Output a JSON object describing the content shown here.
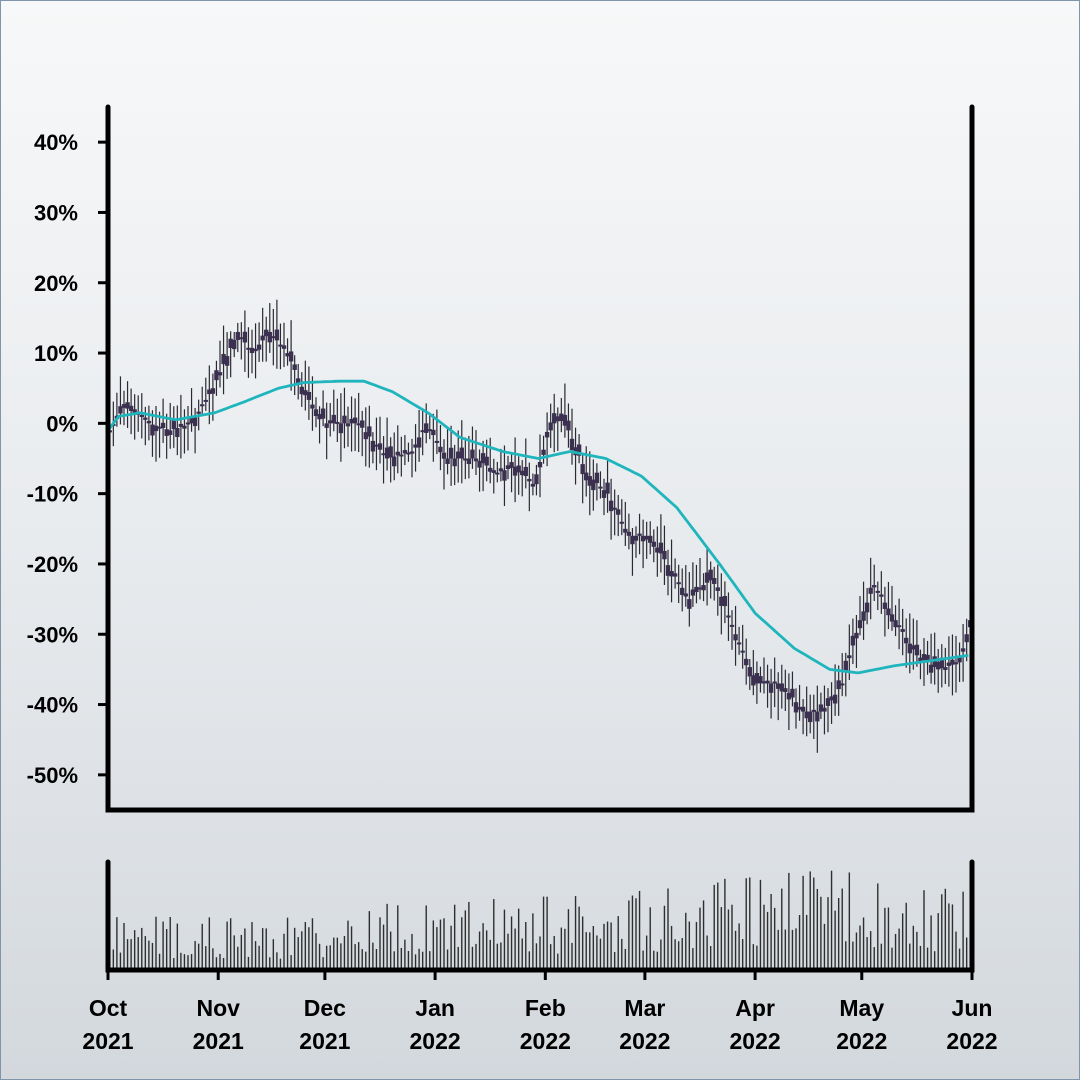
{
  "chart_data": [
    {
      "type": "candlestick",
      "y_unit": "%",
      "ylim": [
        -55,
        45
      ],
      "y_ticks": [
        40,
        30,
        20,
        10,
        0,
        -10,
        -20,
        -30,
        -40,
        -50
      ],
      "y_tick_labels": [
        "40%",
        "30%",
        "20%",
        "10%",
        "0%",
        "-10%",
        "-20%",
        "-30%",
        "-40%",
        "-50%"
      ],
      "x_range": [
        "2021-10-01",
        "2022-06-01"
      ],
      "x_ticks": [
        {
          "date": "2021-10-01",
          "month": "Oct",
          "year": "2021"
        },
        {
          "date": "2021-11-01",
          "month": "Nov",
          "year": "2021"
        },
        {
          "date": "2021-12-01",
          "month": "Dec",
          "year": "2021"
        },
        {
          "date": "2022-01-01",
          "month": "Jan",
          "year": "2022"
        },
        {
          "date": "2022-02-01",
          "month": "Feb",
          "year": "2022"
        },
        {
          "date": "2022-03-01",
          "month": "Mar",
          "year": "2022"
        },
        {
          "date": "2022-04-01",
          "month": "Apr",
          "year": "2022"
        },
        {
          "date": "2022-05-01",
          "month": "May",
          "year": "2022"
        },
        {
          "date": "2022-06-01",
          "month": "Jun",
          "year": "2022"
        }
      ],
      "close_keypoints": [
        {
          "date": "2021-10-01",
          "value": -1
        },
        {
          "date": "2021-10-06",
          "value": 3
        },
        {
          "date": "2021-10-12",
          "value": 0
        },
        {
          "date": "2021-10-18",
          "value": -1
        },
        {
          "date": "2021-10-24",
          "value": 0
        },
        {
          "date": "2021-10-30",
          "value": 5
        },
        {
          "date": "2021-11-06",
          "value": 13
        },
        {
          "date": "2021-11-10",
          "value": 10
        },
        {
          "date": "2021-11-15",
          "value": 13
        },
        {
          "date": "2021-11-20",
          "value": 10
        },
        {
          "date": "2021-11-25",
          "value": 4
        },
        {
          "date": "2021-12-01",
          "value": 0
        },
        {
          "date": "2021-12-10",
          "value": 0
        },
        {
          "date": "2021-12-18",
          "value": -5
        },
        {
          "date": "2021-12-25",
          "value": -4
        },
        {
          "date": "2021-12-29",
          "value": 0
        },
        {
          "date": "2022-01-04",
          "value": -5
        },
        {
          "date": "2022-01-12",
          "value": -5
        },
        {
          "date": "2022-01-18",
          "value": -7
        },
        {
          "date": "2022-01-24",
          "value": -6
        },
        {
          "date": "2022-01-28",
          "value": -9
        },
        {
          "date": "2022-02-01",
          "value": -2
        },
        {
          "date": "2022-02-04",
          "value": 1
        },
        {
          "date": "2022-02-07",
          "value": -1
        },
        {
          "date": "2022-02-12",
          "value": -7
        },
        {
          "date": "2022-02-18",
          "value": -10
        },
        {
          "date": "2022-02-24",
          "value": -16
        },
        {
          "date": "2022-03-02",
          "value": -16
        },
        {
          "date": "2022-03-08",
          "value": -21
        },
        {
          "date": "2022-03-13",
          "value": -25
        },
        {
          "date": "2022-03-17",
          "value": -23
        },
        {
          "date": "2022-03-20",
          "value": -22
        },
        {
          "date": "2022-03-26",
          "value": -30
        },
        {
          "date": "2022-04-01",
          "value": -37
        },
        {
          "date": "2022-04-08",
          "value": -37
        },
        {
          "date": "2022-04-14",
          "value": -41
        },
        {
          "date": "2022-04-20",
          "value": -41
        },
        {
          "date": "2022-04-25",
          "value": -37
        },
        {
          "date": "2022-04-30",
          "value": -28
        },
        {
          "date": "2022-05-04",
          "value": -23
        },
        {
          "date": "2022-05-10",
          "value": -28
        },
        {
          "date": "2022-05-16",
          "value": -33
        },
        {
          "date": "2022-05-22",
          "value": -35
        },
        {
          "date": "2022-05-28",
          "value": -34
        },
        {
          "date": "2022-05-31",
          "value": -28
        }
      ],
      "moving_average": {
        "color": "#1fb5bd",
        "points": [
          {
            "date": "2021-10-01",
            "value": -1
          },
          {
            "date": "2021-10-04",
            "value": 1
          },
          {
            "date": "2021-10-10",
            "value": 1.5
          },
          {
            "date": "2021-10-20",
            "value": 0.5
          },
          {
            "date": "2021-10-31",
            "value": 1.5
          },
          {
            "date": "2021-11-08",
            "value": 3
          },
          {
            "date": "2021-11-18",
            "value": 5
          },
          {
            "date": "2021-11-25",
            "value": 5.8
          },
          {
            "date": "2021-12-05",
            "value": 6
          },
          {
            "date": "2021-12-12",
            "value": 6
          },
          {
            "date": "2021-12-20",
            "value": 4.5
          },
          {
            "date": "2021-12-30",
            "value": 1.5
          },
          {
            "date": "2022-01-08",
            "value": -2
          },
          {
            "date": "2022-01-20",
            "value": -4
          },
          {
            "date": "2022-01-30",
            "value": -5
          },
          {
            "date": "2022-02-08",
            "value": -4
          },
          {
            "date": "2022-02-18",
            "value": -5
          },
          {
            "date": "2022-02-28",
            "value": -7.5
          },
          {
            "date": "2022-03-10",
            "value": -12
          },
          {
            "date": "2022-03-22",
            "value": -20
          },
          {
            "date": "2022-04-01",
            "value": -27
          },
          {
            "date": "2022-04-12",
            "value": -32
          },
          {
            "date": "2022-04-22",
            "value": -35
          },
          {
            "date": "2022-04-30",
            "value": -35.5
          },
          {
            "date": "2022-05-10",
            "value": -34.5
          },
          {
            "date": "2022-05-20",
            "value": -33.8
          },
          {
            "date": "2022-05-31",
            "value": -33
          }
        ]
      },
      "colors": {
        "candle": "#3b3050",
        "wick": "#2a2a33",
        "axis": "#000000"
      }
    },
    {
      "type": "bar",
      "name_hint": "volume",
      "x_range": [
        "2021-10-01",
        "2022-06-01"
      ],
      "relative_level_keypoints": [
        {
          "date": "2021-10-01",
          "value": 0.35
        },
        {
          "date": "2021-11-15",
          "value": 0.3
        },
        {
          "date": "2021-12-20",
          "value": 0.4
        },
        {
          "date": "2022-02-15",
          "value": 0.45
        },
        {
          "date": "2022-03-25",
          "value": 0.55
        },
        {
          "date": "2022-04-20",
          "value": 0.6
        },
        {
          "date": "2022-05-31",
          "value": 0.5
        }
      ],
      "colors": {
        "bar": "#2e2e2e"
      }
    }
  ]
}
